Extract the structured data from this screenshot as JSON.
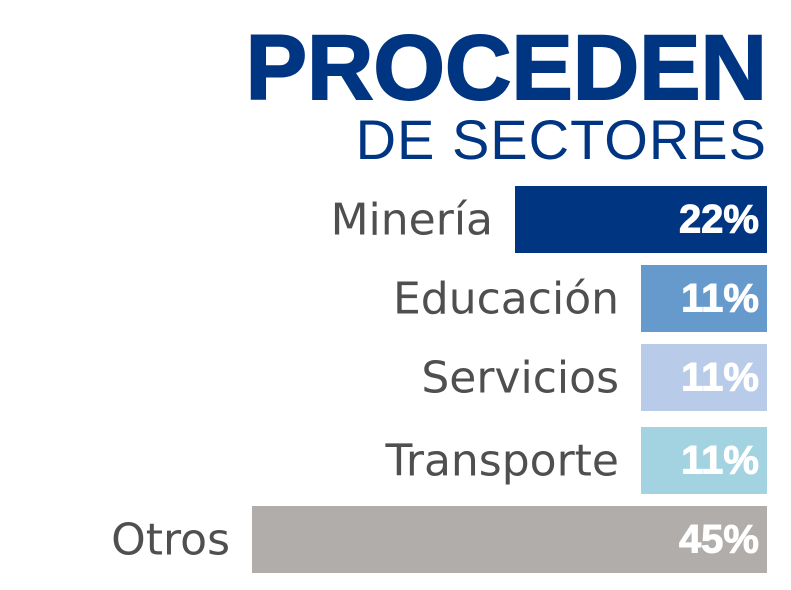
{
  "header": {
    "title": "PROCEDEN",
    "subtitle": "DE SECTORES"
  },
  "chart_data": {
    "type": "bar",
    "orientation": "horizontal",
    "title": "PROCEDEN",
    "subtitle": "DE SECTORES",
    "categories": [
      "Minería",
      "Educación",
      "Servicios",
      "Transporte",
      "Otros"
    ],
    "values": [
      22,
      11,
      11,
      11,
      45
    ],
    "value_labels": [
      "22%",
      "11%",
      "11%",
      "11%",
      "45%"
    ],
    "unit": "%",
    "colors": [
      "#003582",
      "#6699cc",
      "#b8cbe8",
      "#a3d3e0",
      "#b0adab"
    ],
    "xlim": [
      0,
      45
    ],
    "grid": false,
    "legend": "none"
  }
}
